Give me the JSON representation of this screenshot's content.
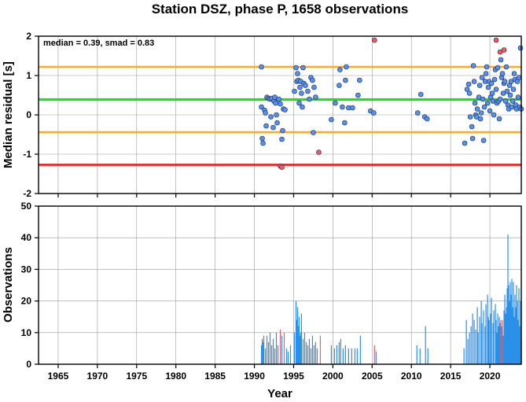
{
  "chart_data": {
    "title": "Station DSZ, phase P, 1658 observations",
    "xlabel": "Year",
    "xlim": [
      1962.5,
      2024
    ],
    "xticks": [
      1965,
      1970,
      1975,
      1980,
      1985,
      1990,
      1995,
      2000,
      2005,
      2010,
      2015,
      2020
    ],
    "colors": {
      "normal": "#5590ee",
      "outlier": "#ff5555",
      "bar_normal": "#2b90e8",
      "bar_outlier": "#e06070",
      "median_line": "#22dd22",
      "smad_line": "#ffaa22",
      "limit_line": "#ee1111"
    },
    "panels": [
      {
        "type": "scatter",
        "ylabel": "Median residual [s]",
        "ylim": [
          -2,
          2
        ],
        "yticks": [
          "2",
          "1",
          "0",
          "-1",
          "-2"
        ],
        "annotation": "median = 0.39, smad = 0.83",
        "hlines": [
          {
            "y": 1.22,
            "kind": "smad"
          },
          {
            "y": 0.39,
            "kind": "median"
          },
          {
            "y": -0.44,
            "kind": "smad"
          },
          {
            "y": -1.27,
            "kind": "limit"
          }
        ],
        "points": [
          [
            1990.9,
            1.22
          ],
          [
            1990.9,
            0.2
          ],
          [
            1991.0,
            -0.6
          ],
          [
            1991.1,
            -0.72
          ],
          [
            1991.3,
            0.12
          ],
          [
            1991.4,
            0.05
          ],
          [
            1991.5,
            -0.28
          ],
          [
            1991.6,
            0.45
          ],
          [
            1991.8,
            0.42
          ],
          [
            1992.0,
            0.4
          ],
          [
            1992.1,
            -0.05
          ],
          [
            1992.2,
            0.42
          ],
          [
            1992.4,
            -0.32
          ],
          [
            1992.5,
            0.35
          ],
          [
            1992.6,
            0.45
          ],
          [
            1992.7,
            0.3
          ],
          [
            1992.8,
            0.0
          ],
          [
            1992.9,
            -0.2
          ],
          [
            1993.1,
            0.4
          ],
          [
            1993.3,
            0.28
          ],
          [
            1993.5,
            -0.62
          ],
          [
            1993.6,
            -0.4
          ],
          [
            1993.7,
            0.15
          ],
          [
            1993.9,
            0.13
          ],
          [
            1993.3,
            -1.3,
            "o"
          ],
          [
            1993.5,
            -1.33,
            "o"
          ],
          [
            1995.1,
            0.6
          ],
          [
            1995.3,
            1.2
          ],
          [
            1995.4,
            0.85
          ],
          [
            1995.5,
            1.05
          ],
          [
            1995.6,
            0.88
          ],
          [
            1995.7,
            0.3
          ],
          [
            1995.8,
            0.7
          ],
          [
            1995.9,
            0.85
          ],
          [
            1996.0,
            0.55
          ],
          [
            1996.1,
            0.2
          ],
          [
            1996.2,
            1.2
          ],
          [
            1996.3,
            0.8
          ],
          [
            1996.5,
            0.75
          ],
          [
            1996.8,
            0.6
          ],
          [
            1997.0,
            0.4
          ],
          [
            1997.2,
            0.95
          ],
          [
            1997.4,
            0.88
          ],
          [
            1997.6,
            0.7
          ],
          [
            1997.8,
            0.45
          ],
          [
            1997.5,
            -0.45
          ],
          [
            1998.2,
            -0.95,
            "o"
          ],
          [
            1999.8,
            -0.12
          ],
          [
            2000.3,
            0.3
          ],
          [
            2000.8,
            0.75
          ],
          [
            2000.9,
            1.15
          ],
          [
            2001.2,
            0.2
          ],
          [
            2001.5,
            -0.2
          ],
          [
            2001.6,
            0.88
          ],
          [
            2001.7,
            1.22
          ],
          [
            2002.0,
            0.18
          ],
          [
            2002.5,
            0.18
          ],
          [
            2003.2,
            0.5
          ],
          [
            2003.4,
            0.88
          ],
          [
            2004.8,
            0.1
          ],
          [
            2005.2,
            0.05
          ],
          [
            2005.3,
            1.9,
            "o"
          ],
          [
            2010.8,
            0.05
          ],
          [
            2011.2,
            0.52
          ],
          [
            2011.7,
            -0.05
          ],
          [
            2012.0,
            -0.1
          ],
          [
            2016.8,
            -0.72
          ],
          [
            2017.1,
            0.65
          ],
          [
            2017.3,
            0.78
          ],
          [
            2017.4,
            0.55
          ],
          [
            2017.5,
            -0.05
          ],
          [
            2017.7,
            -0.3
          ],
          [
            2017.8,
            -0.6
          ],
          [
            2017.9,
            1.25
          ],
          [
            2018.0,
            0.85
          ],
          [
            2018.1,
            0.3
          ],
          [
            2018.2,
            0.0
          ],
          [
            2018.3,
            -0.05
          ],
          [
            2018.4,
            0.15
          ],
          [
            2018.6,
            0.45
          ],
          [
            2018.7,
            0.75
          ],
          [
            2018.8,
            -0.1
          ],
          [
            2018.9,
            0.05
          ],
          [
            2019.0,
            0.95
          ],
          [
            2019.1,
            0.4
          ],
          [
            2019.2,
            -0.65
          ],
          [
            2019.3,
            0.2
          ],
          [
            2019.4,
            0.85
          ],
          [
            2019.5,
            1.05
          ],
          [
            2019.6,
            1.22
          ],
          [
            2019.7,
            0.3
          ],
          [
            2019.8,
            0.7
          ],
          [
            2019.9,
            0.85
          ],
          [
            2020.0,
            0.1
          ],
          [
            2020.1,
            0.45
          ],
          [
            2020.2,
            0.8
          ],
          [
            2020.3,
            0.55
          ],
          [
            2020.4,
            0.35
          ],
          [
            2020.5,
            0.0
          ],
          [
            2020.6,
            0.9
          ],
          [
            2020.7,
            1.15
          ],
          [
            2020.8,
            0.65
          ],
          [
            2020.9,
            0.3
          ],
          [
            2021.0,
            1.2
          ],
          [
            2021.1,
            0.35
          ],
          [
            2021.2,
            -0.1
          ],
          [
            2021.3,
            0.4
          ],
          [
            2021.4,
            1.4
          ],
          [
            2021.5,
            0.95
          ],
          [
            2021.6,
            1.05
          ],
          [
            2021.7,
            0.55
          ],
          [
            2021.8,
            0.8
          ],
          [
            2021.9,
            0.85
          ],
          [
            2022.0,
            0.35
          ],
          [
            2022.1,
            1.22
          ],
          [
            2022.2,
            0.6
          ],
          [
            2022.3,
            0.25
          ],
          [
            2022.4,
            0.15
          ],
          [
            2022.5,
            0.75
          ],
          [
            2022.6,
            0.5
          ],
          [
            2022.7,
            0.85
          ],
          [
            2022.8,
            0.2
          ],
          [
            2022.9,
            0.35
          ],
          [
            2023.0,
            0.65
          ],
          [
            2023.1,
            1.05
          ],
          [
            2023.2,
            0.9
          ],
          [
            2023.3,
            0.25
          ],
          [
            2023.4,
            0.15
          ],
          [
            2023.5,
            0.85
          ],
          [
            2023.6,
            0.45
          ],
          [
            2023.7,
            0.95
          ],
          [
            2023.8,
            0.2
          ],
          [
            2023.9,
            1.7
          ],
          [
            2024.0,
            0.15
          ],
          [
            2020.8,
            1.9,
            "o"
          ],
          [
            2021.3,
            1.6,
            "o"
          ],
          [
            2021.8,
            1.65,
            "o"
          ]
        ]
      },
      {
        "type": "bar",
        "ylabel": "Observations",
        "ylim": [
          0,
          50
        ],
        "yticks": [
          "0",
          "10",
          "20",
          "30",
          "40",
          "50"
        ],
        "bars": [
          [
            1990.9,
            6
          ],
          [
            1991.0,
            8
          ],
          [
            1991.1,
            7
          ],
          [
            1991.2,
            9
          ],
          [
            1991.4,
            5
          ],
          [
            1991.6,
            9
          ],
          [
            1991.8,
            7
          ],
          [
            1992.0,
            10
          ],
          [
            1992.2,
            6
          ],
          [
            1992.4,
            8
          ],
          [
            1992.6,
            5
          ],
          [
            1992.8,
            10
          ],
          [
            1993.0,
            6
          ],
          [
            1993.3,
            11,
            "o"
          ],
          [
            1993.5,
            9
          ],
          [
            1993.8,
            10,
            "o"
          ],
          [
            1994.1,
            5
          ],
          [
            1994.3,
            4
          ],
          [
            1994.6,
            6
          ],
          [
            1995.1,
            10
          ],
          [
            1995.3,
            20
          ],
          [
            1995.4,
            14
          ],
          [
            1995.5,
            18
          ],
          [
            1995.6,
            12
          ],
          [
            1995.7,
            15
          ],
          [
            1995.8,
            9
          ],
          [
            1995.9,
            10
          ],
          [
            1996.0,
            16
          ],
          [
            1996.2,
            8
          ],
          [
            1996.4,
            10
          ],
          [
            1996.6,
            7
          ],
          [
            1996.8,
            6
          ],
          [
            1997.0,
            8
          ],
          [
            1997.2,
            5
          ],
          [
            1997.4,
            9
          ],
          [
            1997.6,
            6
          ],
          [
            1997.8,
            7
          ],
          [
            1998.0,
            5
          ],
          [
            1998.4,
            9,
            "o"
          ],
          [
            1999.8,
            6
          ],
          [
            2000.2,
            5
          ],
          [
            2000.5,
            6
          ],
          [
            2000.8,
            7
          ],
          [
            2001.0,
            8
          ],
          [
            2001.3,
            5
          ],
          [
            2001.6,
            6
          ],
          [
            2002.0,
            5
          ],
          [
            2002.4,
            5
          ],
          [
            2002.8,
            5
          ],
          [
            2003.1,
            5
          ],
          [
            2003.5,
            9
          ],
          [
            2005.3,
            6,
            "o"
          ],
          [
            2005.5,
            4
          ],
          [
            2010.7,
            6
          ],
          [
            2011.1,
            5
          ],
          [
            2011.8,
            12
          ],
          [
            2012.1,
            5
          ],
          [
            2016.7,
            5
          ],
          [
            2017.0,
            14
          ],
          [
            2017.2,
            8
          ],
          [
            2017.4,
            10
          ],
          [
            2017.6,
            12
          ],
          [
            2017.8,
            16
          ],
          [
            2018.0,
            14
          ],
          [
            2018.2,
            11
          ],
          [
            2018.4,
            18
          ],
          [
            2018.5,
            10
          ],
          [
            2018.7,
            15
          ],
          [
            2018.9,
            20
          ],
          [
            2019.0,
            13
          ],
          [
            2019.2,
            17
          ],
          [
            2019.4,
            12
          ],
          [
            2019.5,
            19
          ],
          [
            2019.7,
            22
          ],
          [
            2019.8,
            15
          ],
          [
            2019.9,
            14
          ],
          [
            2020.1,
            16
          ],
          [
            2020.2,
            21
          ],
          [
            2020.4,
            13
          ],
          [
            2020.5,
            17
          ],
          [
            2020.7,
            19
          ],
          [
            2020.8,
            14
          ],
          [
            2020.9,
            10
          ],
          [
            2021.0,
            16
          ],
          [
            2021.1,
            12
          ],
          [
            2021.2,
            15
          ],
          [
            2021.3,
            13
          ],
          [
            2021.4,
            14,
            "o"
          ],
          [
            2021.5,
            12
          ],
          [
            2021.6,
            14,
            "o"
          ],
          [
            2021.7,
            9
          ],
          [
            2021.8,
            17
          ],
          [
            2021.9,
            22
          ],
          [
            2022.0,
            16
          ],
          [
            2022.1,
            18
          ],
          [
            2022.2,
            24
          ],
          [
            2022.3,
            41
          ],
          [
            2022.4,
            25
          ],
          [
            2022.5,
            20
          ],
          [
            2022.6,
            26
          ],
          [
            2022.7,
            22
          ],
          [
            2022.8,
            27
          ],
          [
            2022.9,
            18
          ],
          [
            2023.0,
            26
          ],
          [
            2023.1,
            15
          ],
          [
            2023.2,
            22
          ],
          [
            2023.3,
            18
          ],
          [
            2023.4,
            25
          ],
          [
            2023.5,
            20
          ],
          [
            2023.6,
            14
          ],
          [
            2023.7,
            24
          ],
          [
            2023.8,
            12
          ],
          [
            2023.9,
            20
          ],
          [
            2024.0,
            8
          ]
        ]
      }
    ]
  }
}
